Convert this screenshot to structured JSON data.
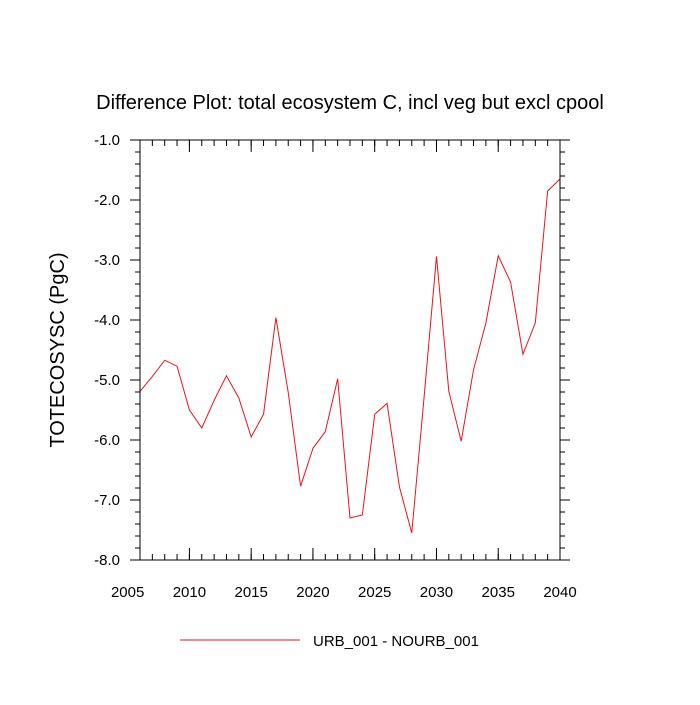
{
  "chart_data": {
    "type": "line",
    "title": "Difference Plot: total ecosystem C, incl veg but excl cpool",
    "xlabel": "",
    "ylabel": "TOTECOSYSC  (PgC)",
    "xlim": [
      2006,
      2040
    ],
    "ylim": [
      -8.0,
      -1.0
    ],
    "x_ticks": [
      2005,
      2010,
      2015,
      2020,
      2025,
      2030,
      2035,
      2040
    ],
    "x_tick_labels": [
      "2005",
      "2010",
      "2015",
      "2020",
      "2025",
      "2030",
      "2035",
      "2040"
    ],
    "y_ticks": [
      -8.0,
      -7.0,
      -6.0,
      -5.0,
      -4.0,
      -3.0,
      -2.0,
      -1.0
    ],
    "y_tick_labels": [
      "-8.0",
      "-7.0",
      "-6.0",
      "-5.0",
      "-4.0",
      "-3.0",
      "-2.0",
      "-1.0"
    ],
    "grid": false,
    "legend_position": "bottom-center",
    "series": [
      {
        "name": "URB_001 - NOURB_001",
        "color": "#e8141c",
        "x": [
          2006,
          2007,
          2008,
          2009,
          2010,
          2011,
          2012,
          2013,
          2014,
          2015,
          2016,
          2017,
          2018,
          2019,
          2020,
          2021,
          2022,
          2023,
          2024,
          2025,
          2026,
          2027,
          2028,
          2029,
          2030,
          2031,
          2032,
          2033,
          2034,
          2035,
          2036,
          2037,
          2038,
          2039,
          2040
        ],
        "values": [
          -5.19,
          -4.94,
          -4.67,
          -4.77,
          -5.5,
          -5.8,
          -5.34,
          -4.93,
          -5.3,
          -5.95,
          -5.57,
          -3.96,
          -5.21,
          -6.77,
          -6.14,
          -5.86,
          -4.98,
          -7.3,
          -7.25,
          -5.57,
          -5.39,
          -6.78,
          -7.55,
          -5.28,
          -2.94,
          -5.19,
          -6.02,
          -4.83,
          -4.05,
          -2.93,
          -3.37,
          -4.57,
          -4.05,
          -1.85,
          -1.65
        ]
      }
    ]
  }
}
